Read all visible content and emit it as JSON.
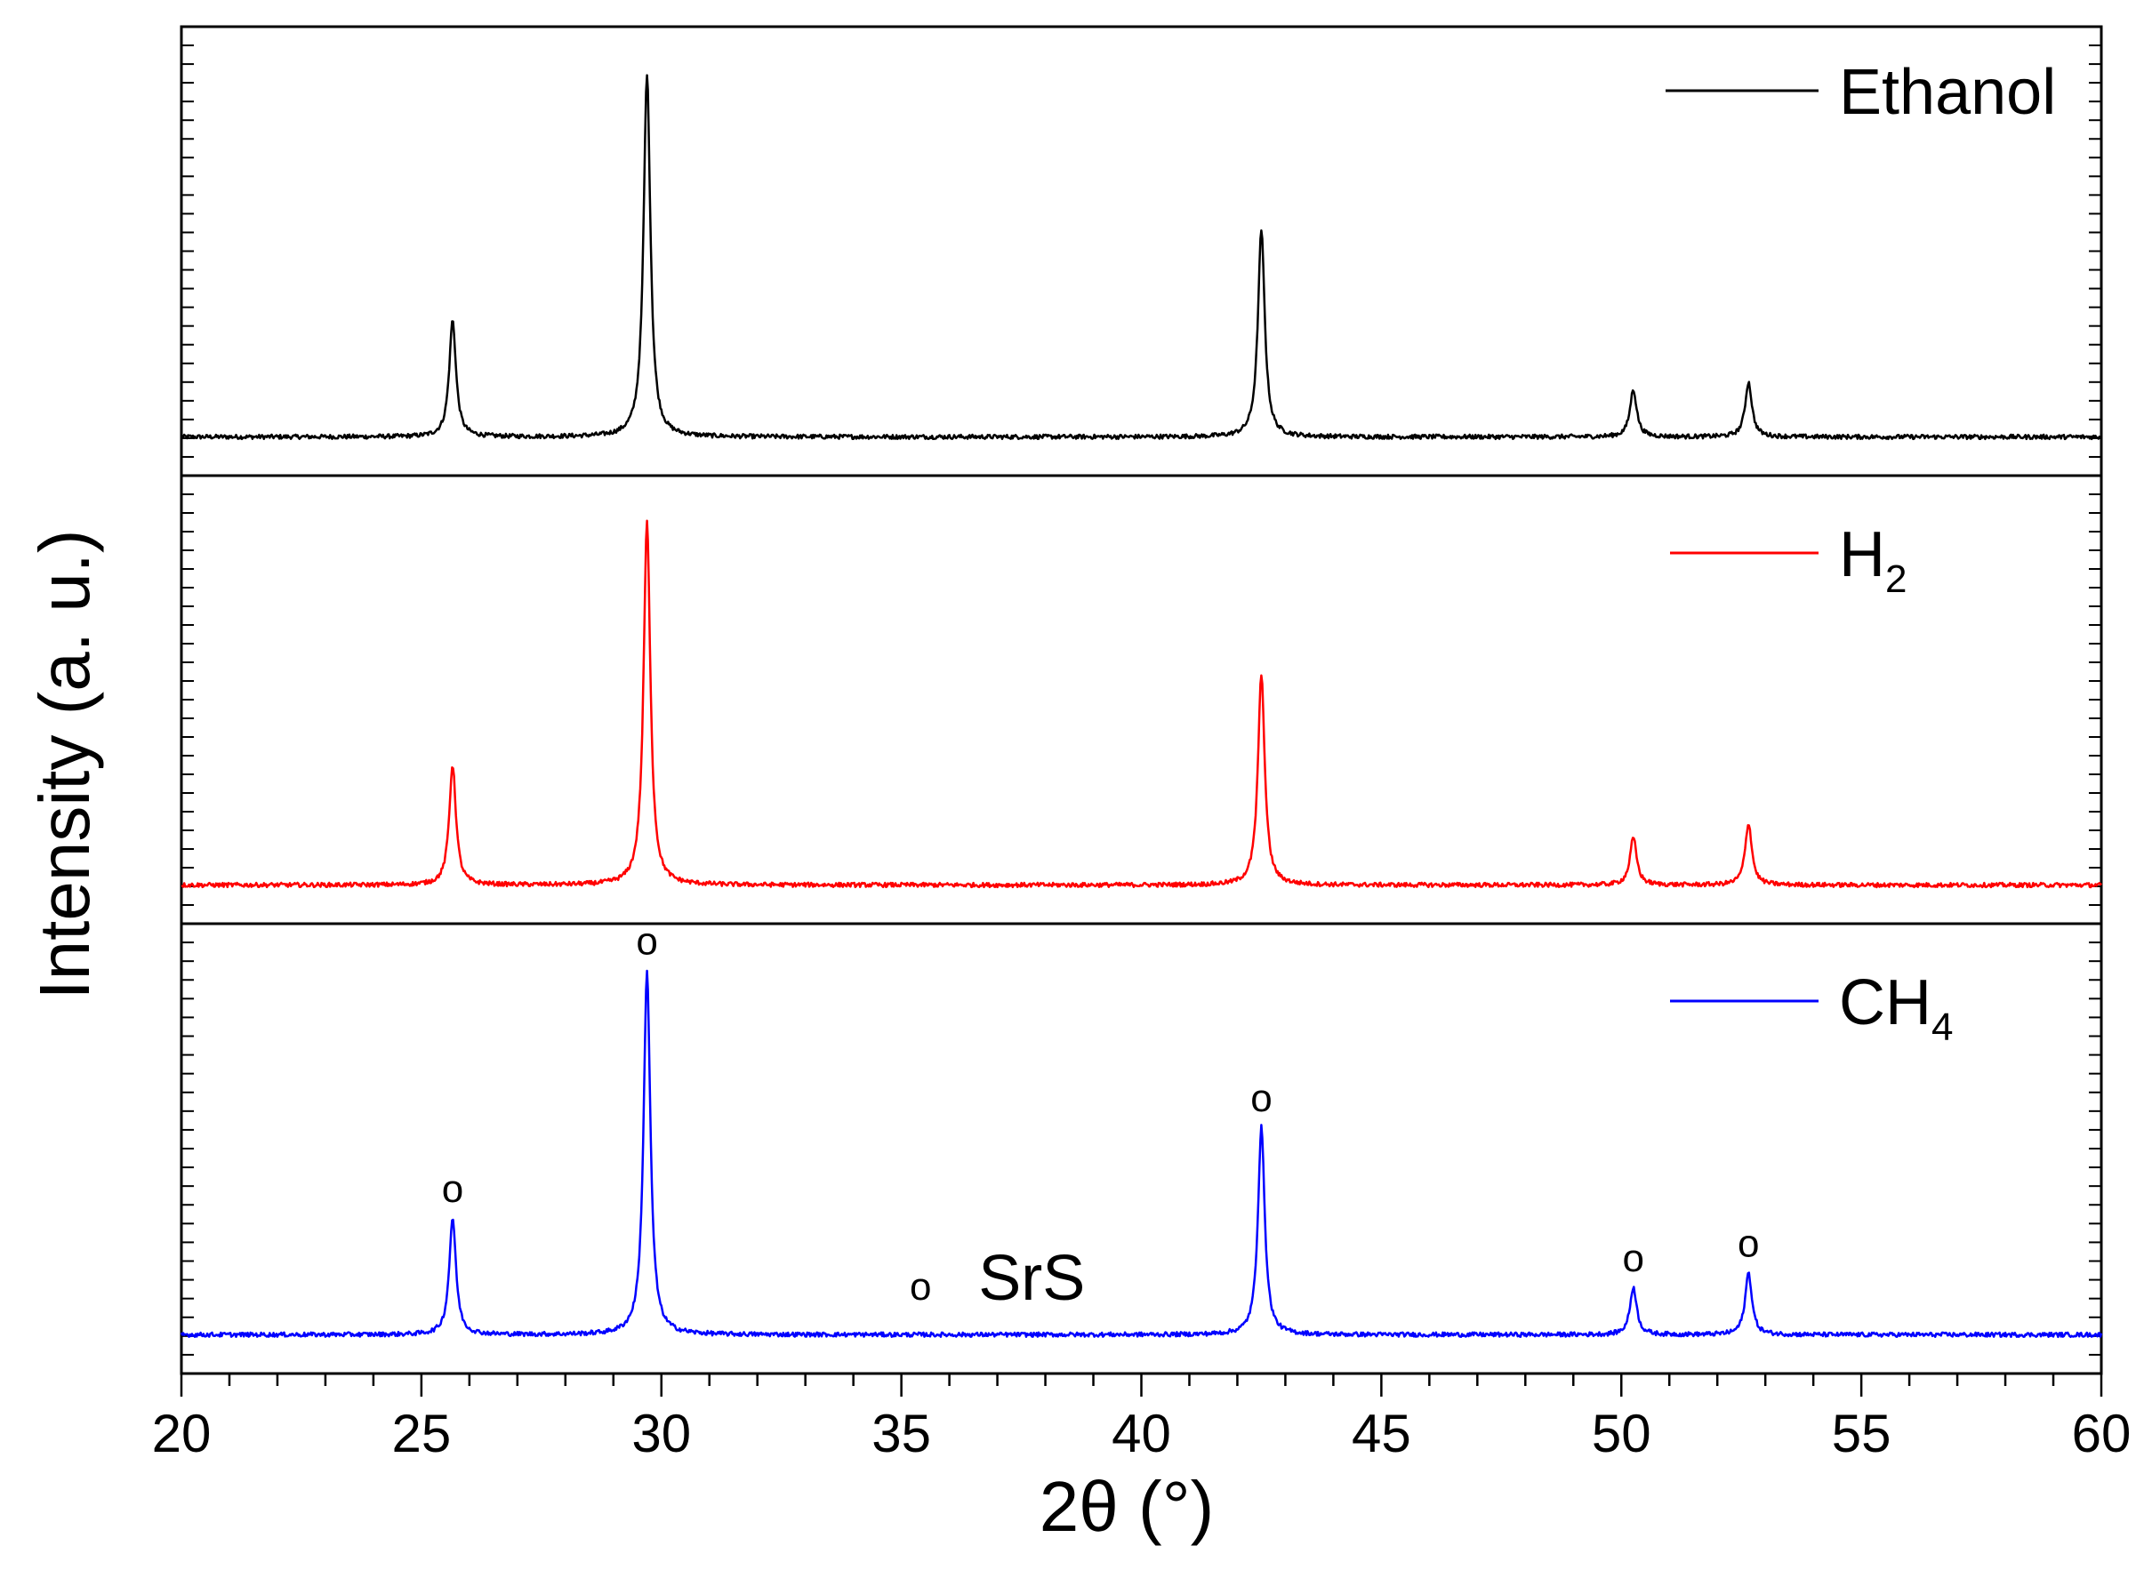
{
  "chart_data": {
    "type": "line",
    "xlabel": "2θ (°)",
    "ylabel": "Intensity (a. u.)",
    "xlim": [
      20,
      60
    ],
    "x_ticks": [
      "20",
      "25",
      "30",
      "35",
      "40",
      "45",
      "50",
      "55",
      "60"
    ],
    "x_minor_step": 1,
    "legend_placement": "top-right",
    "panels": [
      {
        "name": "Ethanol",
        "color": "#000000",
        "legend_text": "Ethanol",
        "legend_sub": "",
        "baseline": 0.02,
        "peaks": [
          {
            "x": 25.65,
            "y": 0.32
          },
          {
            "x": 29.7,
            "y": 1.0
          },
          {
            "x": 42.5,
            "y": 0.57
          },
          {
            "x": 50.25,
            "y": 0.13
          },
          {
            "x": 52.65,
            "y": 0.15
          }
        ]
      },
      {
        "name": "H2",
        "color": "#ff0000",
        "legend_text": "H",
        "legend_sub": "2",
        "baseline": 0.02,
        "peaks": [
          {
            "x": 25.65,
            "y": 0.33
          },
          {
            "x": 29.7,
            "y": 1.0
          },
          {
            "x": 42.5,
            "y": 0.58
          },
          {
            "x": 50.25,
            "y": 0.13
          },
          {
            "x": 52.65,
            "y": 0.17
          }
        ]
      },
      {
        "name": "CH4",
        "color": "#0000ff",
        "legend_text": "CH",
        "legend_sub": "4",
        "baseline": 0.02,
        "peaks": [
          {
            "x": 25.65,
            "y": 0.32
          },
          {
            "x": 29.7,
            "y": 1.0
          },
          {
            "x": 42.5,
            "y": 0.57
          },
          {
            "x": 50.25,
            "y": 0.13
          },
          {
            "x": 52.65,
            "y": 0.17
          }
        ],
        "markers": [
          25.65,
          29.7,
          42.5,
          50.25,
          52.65
        ],
        "marker_symbol": "o",
        "phase_label": "SrS"
      }
    ]
  }
}
